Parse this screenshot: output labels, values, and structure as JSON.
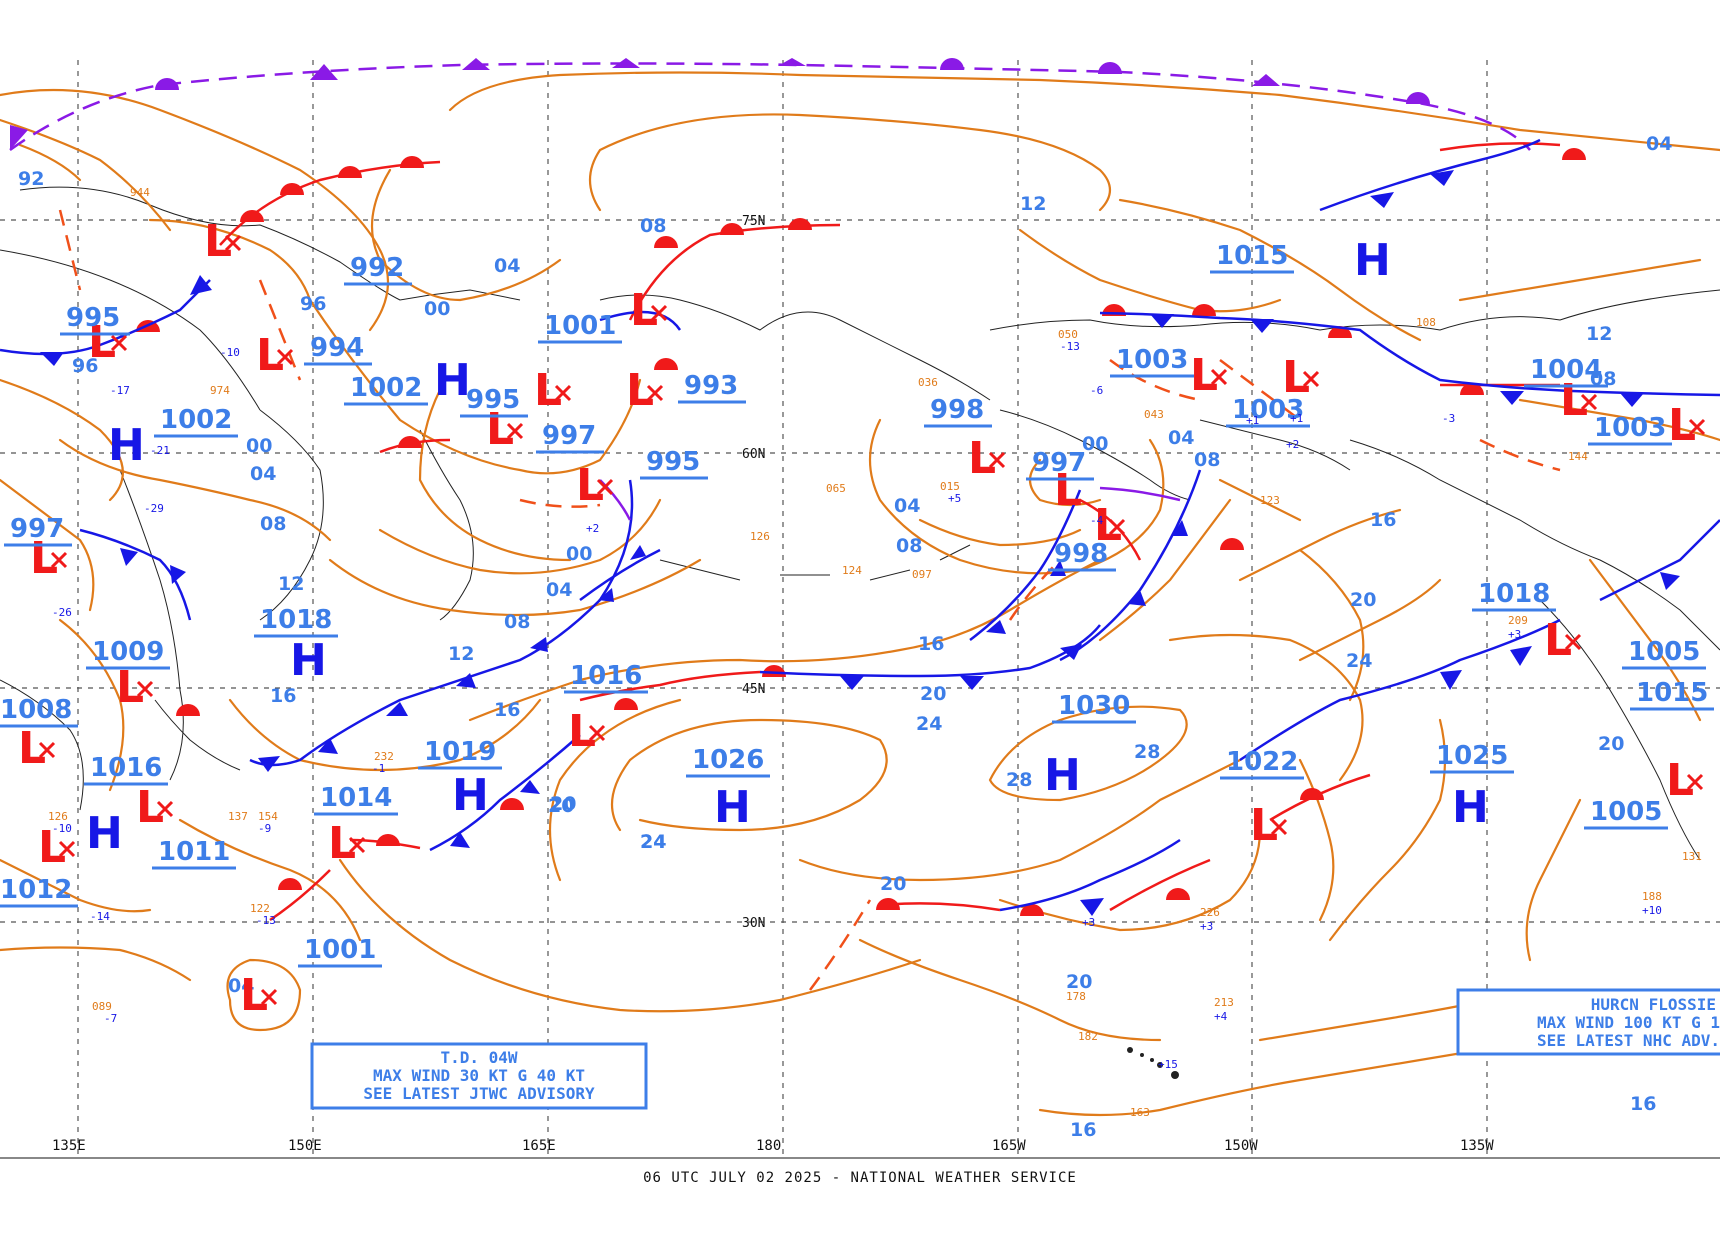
{
  "footer": "06 UTC JULY 02 2025 - NATIONAL WEATHER SERVICE",
  "colors": {
    "isobar": "#e07b1a",
    "pressure_label": "#3d7ee8",
    "high": "#1717e6",
    "low": "#f01a1a",
    "cold_front": "#1717e6",
    "warm_front": "#f01a1a",
    "arctic_front": "#8a1ae6",
    "grid": "#555555"
  },
  "latitude_labels": [
    "75N",
    "60N",
    "45N",
    "30N"
  ],
  "longitude_labels": [
    "135E",
    "150E",
    "165E",
    "180",
    "165W",
    "150W",
    "135W"
  ],
  "pressure_centers": [
    {
      "type": "L",
      "value": "995"
    },
    {
      "type": "L",
      "value": "992"
    },
    {
      "type": "L",
      "value": "994"
    },
    {
      "type": "L",
      "value": "1002"
    },
    {
      "type": "H",
      "value": "1002"
    },
    {
      "type": "L",
      "value": "995"
    },
    {
      "type": "L",
      "value": "1001"
    },
    {
      "type": "L",
      "value": "993"
    },
    {
      "type": "L",
      "value": "997"
    },
    {
      "type": "L",
      "value": "995"
    },
    {
      "type": "L",
      "value": "997"
    },
    {
      "type": "H",
      "value": "1018"
    },
    {
      "type": "L",
      "value": "1009"
    },
    {
      "type": "L",
      "value": "1008"
    },
    {
      "type": "H",
      "value": "1016"
    },
    {
      "type": "H",
      "value": "1011"
    },
    {
      "type": "L",
      "value": "1014"
    },
    {
      "type": "H",
      "value": "1019"
    },
    {
      "type": "L",
      "value": "1016"
    },
    {
      "type": "H",
      "value": "1026"
    },
    {
      "type": "L",
      "value": "1012"
    },
    {
      "type": "L",
      "value": "1001"
    },
    {
      "type": "L",
      "value": "998"
    },
    {
      "type": "L",
      "value": "997"
    },
    {
      "type": "L",
      "value": "998"
    },
    {
      "type": "H",
      "value": "1030"
    },
    {
      "type": "H",
      "value": "1015"
    },
    {
      "type": "L",
      "value": "1003"
    },
    {
      "type": "L",
      "value": "1003"
    },
    {
      "type": "L",
      "value": "1022"
    },
    {
      "type": "H",
      "value": "1025"
    },
    {
      "type": "L",
      "value": "1018"
    },
    {
      "type": "L",
      "value": "1004"
    },
    {
      "type": "L",
      "value": "1003"
    },
    {
      "type": "L",
      "value": "1005"
    },
    {
      "type": "L",
      "value": "1015"
    },
    {
      "type": "L",
      "value": "1005"
    }
  ],
  "contour_labels": [
    "92",
    "96",
    "00",
    "04",
    "08",
    "12",
    "16",
    "20",
    "24",
    "28",
    "08",
    "04",
    "00",
    "96",
    "00",
    "04",
    "08",
    "12",
    "16",
    "20",
    "24",
    "12",
    "04",
    "16",
    "20",
    "24",
    "20",
    "16",
    "20",
    "16",
    "04",
    "08",
    "12",
    "16",
    "20",
    "24",
    "28",
    "20",
    "08",
    "04",
    "08",
    "00",
    "04"
  ],
  "advisories": {
    "td": [
      "T.D. 04W",
      "MAX WIND 30 KT G 40 KT",
      "SEE LATEST JTWC ADVISORY"
    ],
    "hurricane": [
      "HURCN FLOSSIE",
      "MAX WIND 100 KT G 1",
      "SEE LATEST NHC ADV."
    ]
  },
  "station_samples": [
    "944",
    "-10",
    "974",
    "-29",
    "065",
    "015",
    "036",
    "+5",
    "050",
    "-13",
    "043",
    "-21",
    "144",
    "-3",
    "108",
    "+1",
    "126",
    "+1",
    "123",
    "+2",
    "-6",
    "+3",
    "124",
    "097",
    "+2",
    "-4",
    "226",
    "+3",
    "213",
    "+4",
    "178",
    "182",
    "163",
    "+15",
    "209",
    "+3",
    "188",
    "+10",
    "131",
    "089",
    "-7",
    "122",
    "-13",
    "232",
    "-1",
    "154",
    "-9",
    "137",
    "126",
    "-10",
    "-14",
    "-26",
    "-17"
  ]
}
